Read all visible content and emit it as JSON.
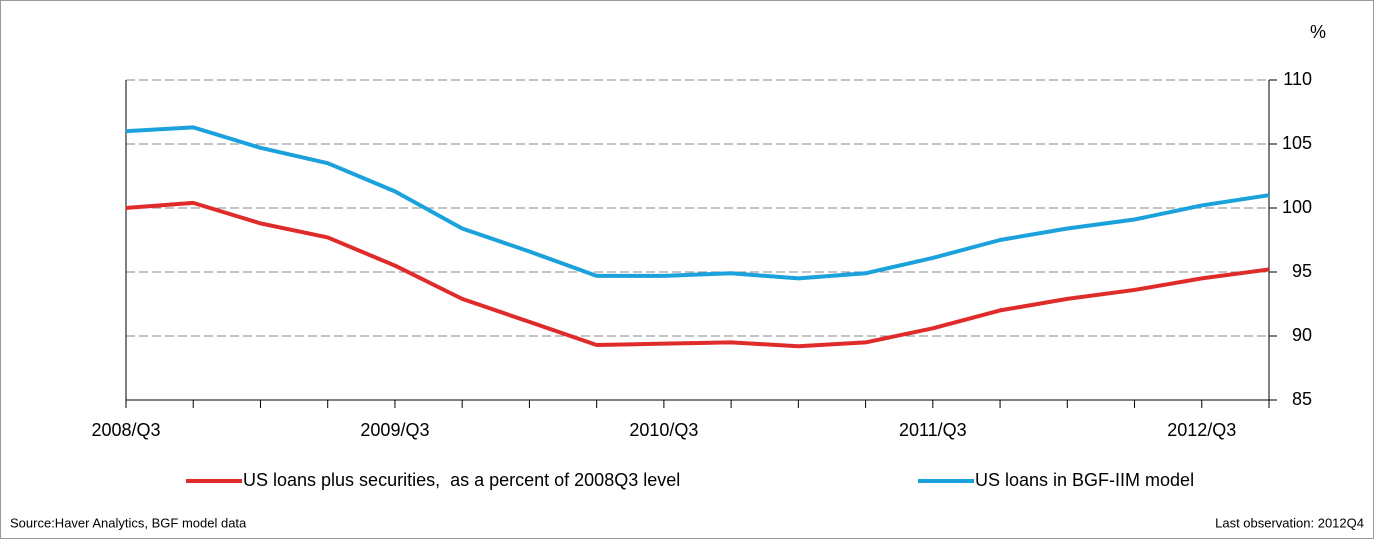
{
  "chart_data": {
    "type": "line",
    "y_unit": "%",
    "categories": [
      "2008/Q3",
      null,
      null,
      null,
      "2009/Q3",
      null,
      null,
      null,
      "2010/Q3",
      null,
      null,
      null,
      "2011/Q3",
      null,
      null,
      null,
      "2012/Q3",
      null
    ],
    "series": [
      {
        "name": "US loans plus securities,  as a percent of 2008Q3 level",
        "color": "#e02b2b",
        "values": [
          100,
          100.4,
          98.8,
          97.7,
          95.5,
          92.9,
          91.1,
          89.3,
          89.4,
          89.5,
          89.2,
          89.5,
          90.6,
          92.0,
          92.9,
          93.6,
          94.5,
          95.2
        ]
      },
      {
        "name": "US loans in BGF-IIM model",
        "color": "#1ba1dc",
        "values": [
          106.0,
          106.3,
          104.7,
          103.5,
          101.3,
          98.4,
          96.6,
          94.7,
          94.7,
          94.9,
          94.5,
          94.9,
          96.1,
          97.5,
          98.4,
          99.1,
          100.2,
          101.0
        ]
      }
    ],
    "ylim": [
      85,
      110
    ],
    "yticks": [
      85,
      90,
      95,
      100,
      105,
      110
    ],
    "grid": true,
    "source": "Source:Haver Analytics, BGF model data",
    "note": "Last observation:  2012Q4"
  }
}
